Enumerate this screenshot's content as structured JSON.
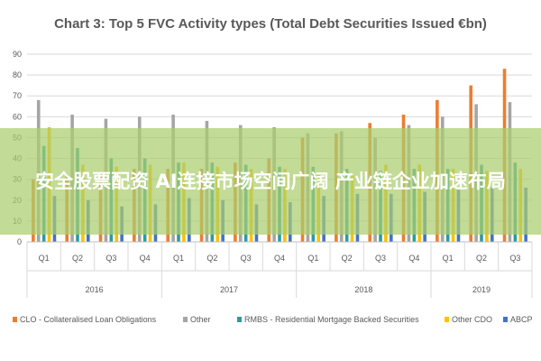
{
  "chart_data": {
    "type": "bar",
    "title": "Chart 3: Top 5 FVC Activity types (Total Debt Securities Issued €bn)",
    "ylim": [
      0,
      90
    ],
    "yticks": [
      0,
      10,
      20,
      30,
      40,
      50,
      60,
      70,
      80,
      90
    ],
    "grid": true,
    "legend_placement": "bottom",
    "categories": [
      "Q1",
      "Q2",
      "Q3",
      "Q4",
      "Q1",
      "Q2",
      "Q3",
      "Q4",
      "Q1",
      "Q2",
      "Q3",
      "Q4",
      "Q1",
      "Q2",
      "Q3"
    ],
    "groups": [
      {
        "label": "2016",
        "count": 4
      },
      {
        "label": "2017",
        "count": 4
      },
      {
        "label": "2018",
        "count": 4
      },
      {
        "label": "2019",
        "count": 3
      }
    ],
    "series": [
      {
        "name": "CLO - Collateralised Loan Obligations",
        "color": "#ED7D31",
        "values": [
          30,
          32,
          33,
          35,
          35,
          35,
          38,
          40,
          50,
          52,
          57,
          61,
          68,
          75,
          83
        ]
      },
      {
        "name": "Other",
        "color": "#A5A5A5",
        "values": [
          68,
          61,
          59,
          60,
          61,
          58,
          56,
          55,
          52,
          53,
          50,
          56,
          60,
          66,
          67
        ]
      },
      {
        "name": "RMBS - Residential Mortgage Backed Securities",
        "color": "#2E9AA0",
        "values": [
          46,
          45,
          40,
          40,
          38,
          38,
          37,
          36,
          36,
          35,
          34,
          35,
          35,
          37,
          38
        ]
      },
      {
        "name": "Other CDO",
        "color": "#FFC000",
        "values": [
          55,
          37,
          36,
          37,
          38,
          36,
          35,
          35,
          33,
          32,
          37,
          37,
          35,
          34,
          35
        ]
      },
      {
        "name": "ABCP",
        "color": "#4472C4",
        "values": [
          22,
          20,
          17,
          18,
          21,
          20,
          18,
          19,
          22,
          23,
          23,
          24,
          25,
          26,
          26
        ]
      }
    ]
  },
  "overlay": {
    "text": "安全股票配资 AI连接市场空间广阔 产业链企业加速布局"
  }
}
